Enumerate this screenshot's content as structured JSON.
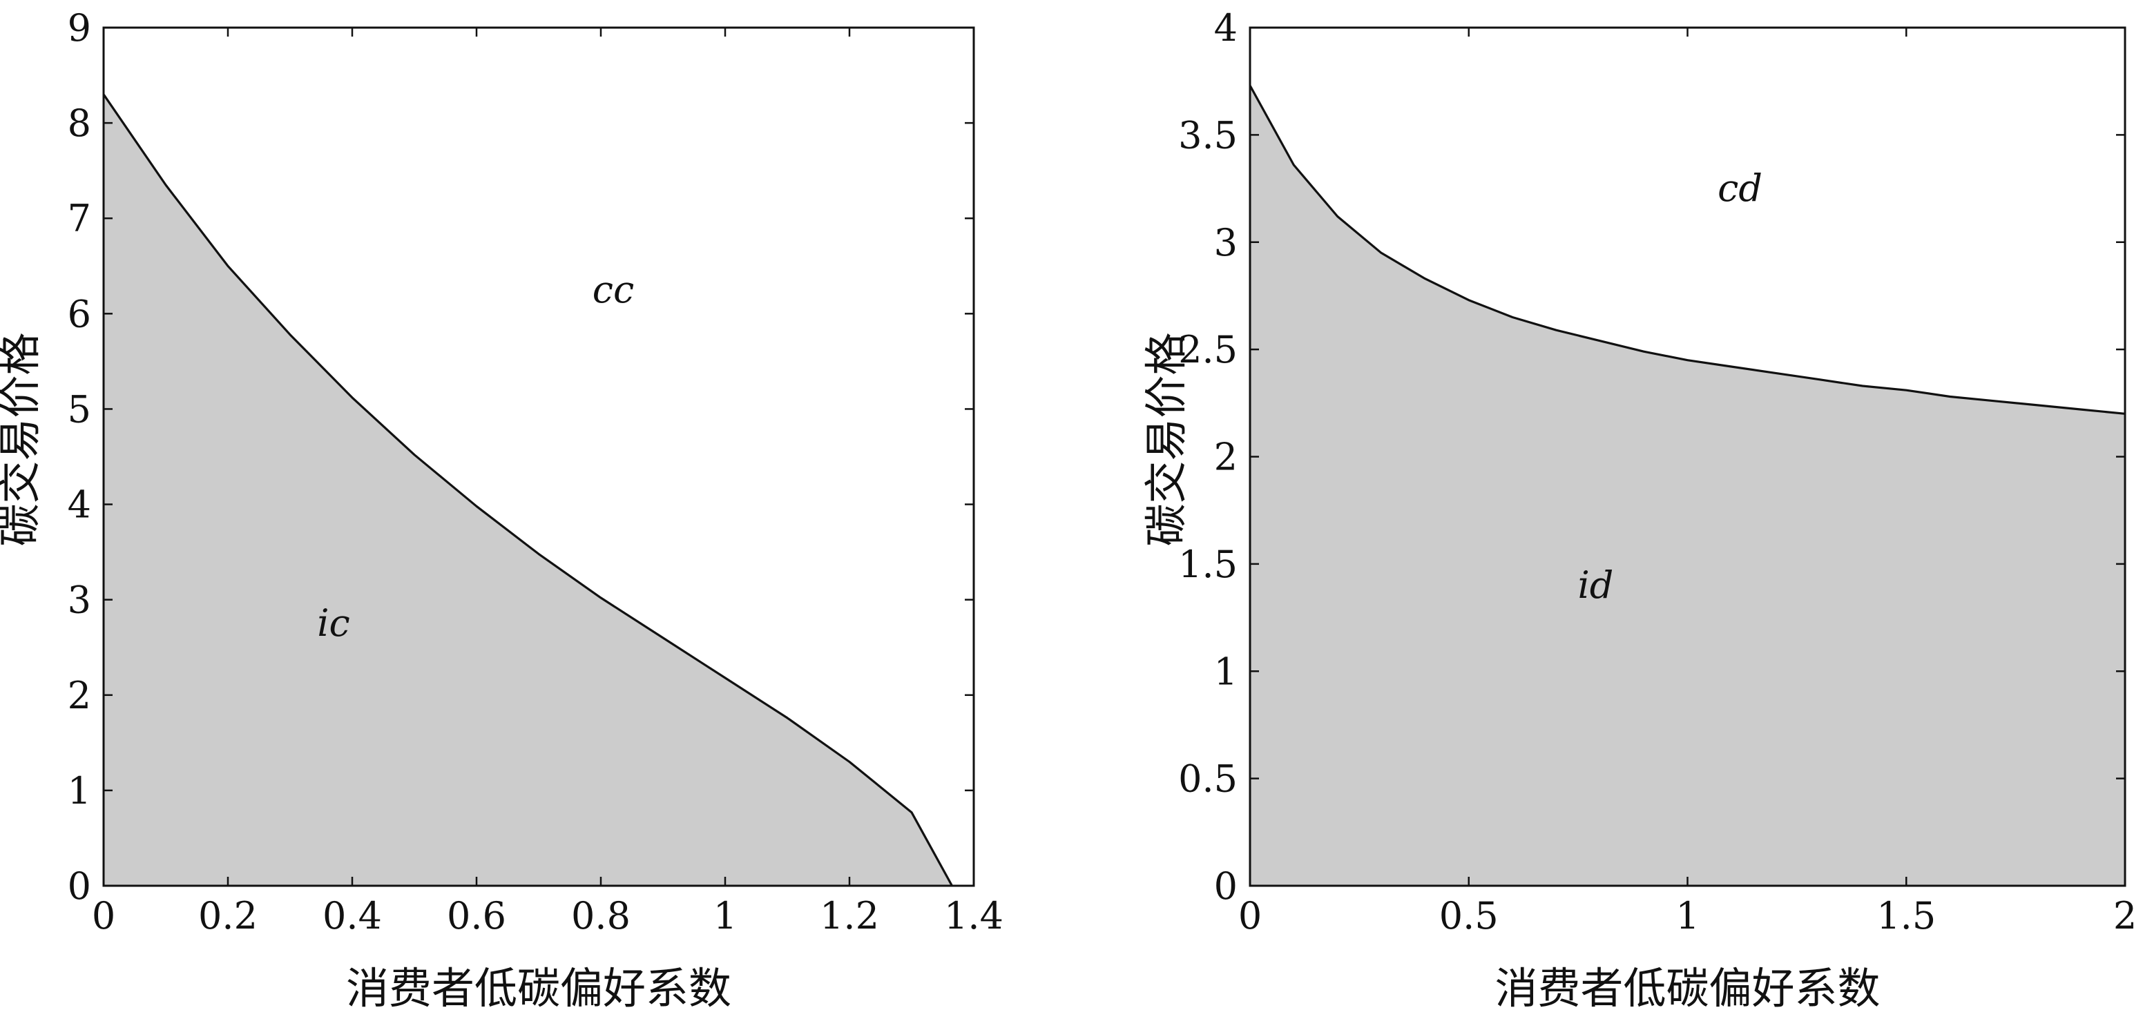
{
  "chart_data": [
    {
      "type": "area",
      "xlabel": "消费者低碳偏好系数",
      "ylabel": "碳交易价格",
      "xlim": [
        0,
        1.4
      ],
      "ylim": [
        0,
        9
      ],
      "xticks": [
        "0",
        "0.2",
        "0.4",
        "0.6",
        "0.8",
        "1",
        "1.2",
        "1.4"
      ],
      "yticks": [
        "0",
        "1",
        "2",
        "3",
        "4",
        "5",
        "6",
        "7",
        "8",
        "9"
      ],
      "grid": false,
      "fill_color": "#cccccc",
      "line_color": "#111111",
      "series": [
        {
          "x": [
            0,
            0.1,
            0.2,
            0.3,
            0.4,
            0.5,
            0.6,
            0.7,
            0.8,
            0.9,
            1.0,
            1.1,
            1.2,
            1.3,
            1.365
          ],
          "y": [
            8.3,
            7.35,
            6.5,
            5.78,
            5.12,
            4.52,
            3.98,
            3.48,
            3.02,
            2.6,
            2.18,
            1.76,
            1.3,
            0.77,
            0
          ]
        }
      ],
      "annotations": [
        {
          "text": "cc",
          "x": 0.82,
          "y": 6.25
        },
        {
          "text": "ic",
          "x": 0.37,
          "y": 2.75
        }
      ]
    },
    {
      "type": "area",
      "xlabel": "消费者低碳偏好系数",
      "ylabel": "碳交易价格",
      "xlim": [
        0,
        2
      ],
      "ylim": [
        0,
        4
      ],
      "xticks": [
        "0",
        "0.5",
        "1",
        "1.5",
        "2"
      ],
      "yticks": [
        "0",
        "0.5",
        "1",
        "1.5",
        "2",
        "2.5",
        "3",
        "3.5",
        "4"
      ],
      "grid": false,
      "fill_color": "#cccccc",
      "line_color": "#111111",
      "series": [
        {
          "x": [
            0,
            0.1,
            0.2,
            0.3,
            0.4,
            0.5,
            0.6,
            0.7,
            0.8,
            0.9,
            1.0,
            1.1,
            1.2,
            1.3,
            1.4,
            1.5,
            1.6,
            1.7,
            1.8,
            1.9,
            2.0
          ],
          "y": [
            3.73,
            3.36,
            3.12,
            2.95,
            2.83,
            2.73,
            2.65,
            2.59,
            2.54,
            2.49,
            2.45,
            2.42,
            2.39,
            2.36,
            2.33,
            2.31,
            2.28,
            2.26,
            2.24,
            2.22,
            2.2
          ]
        }
      ],
      "annotations": [
        {
          "text": "cd",
          "x": 1.12,
          "y": 3.25
        },
        {
          "text": "id",
          "x": 0.79,
          "y": 1.4
        }
      ]
    }
  ]
}
